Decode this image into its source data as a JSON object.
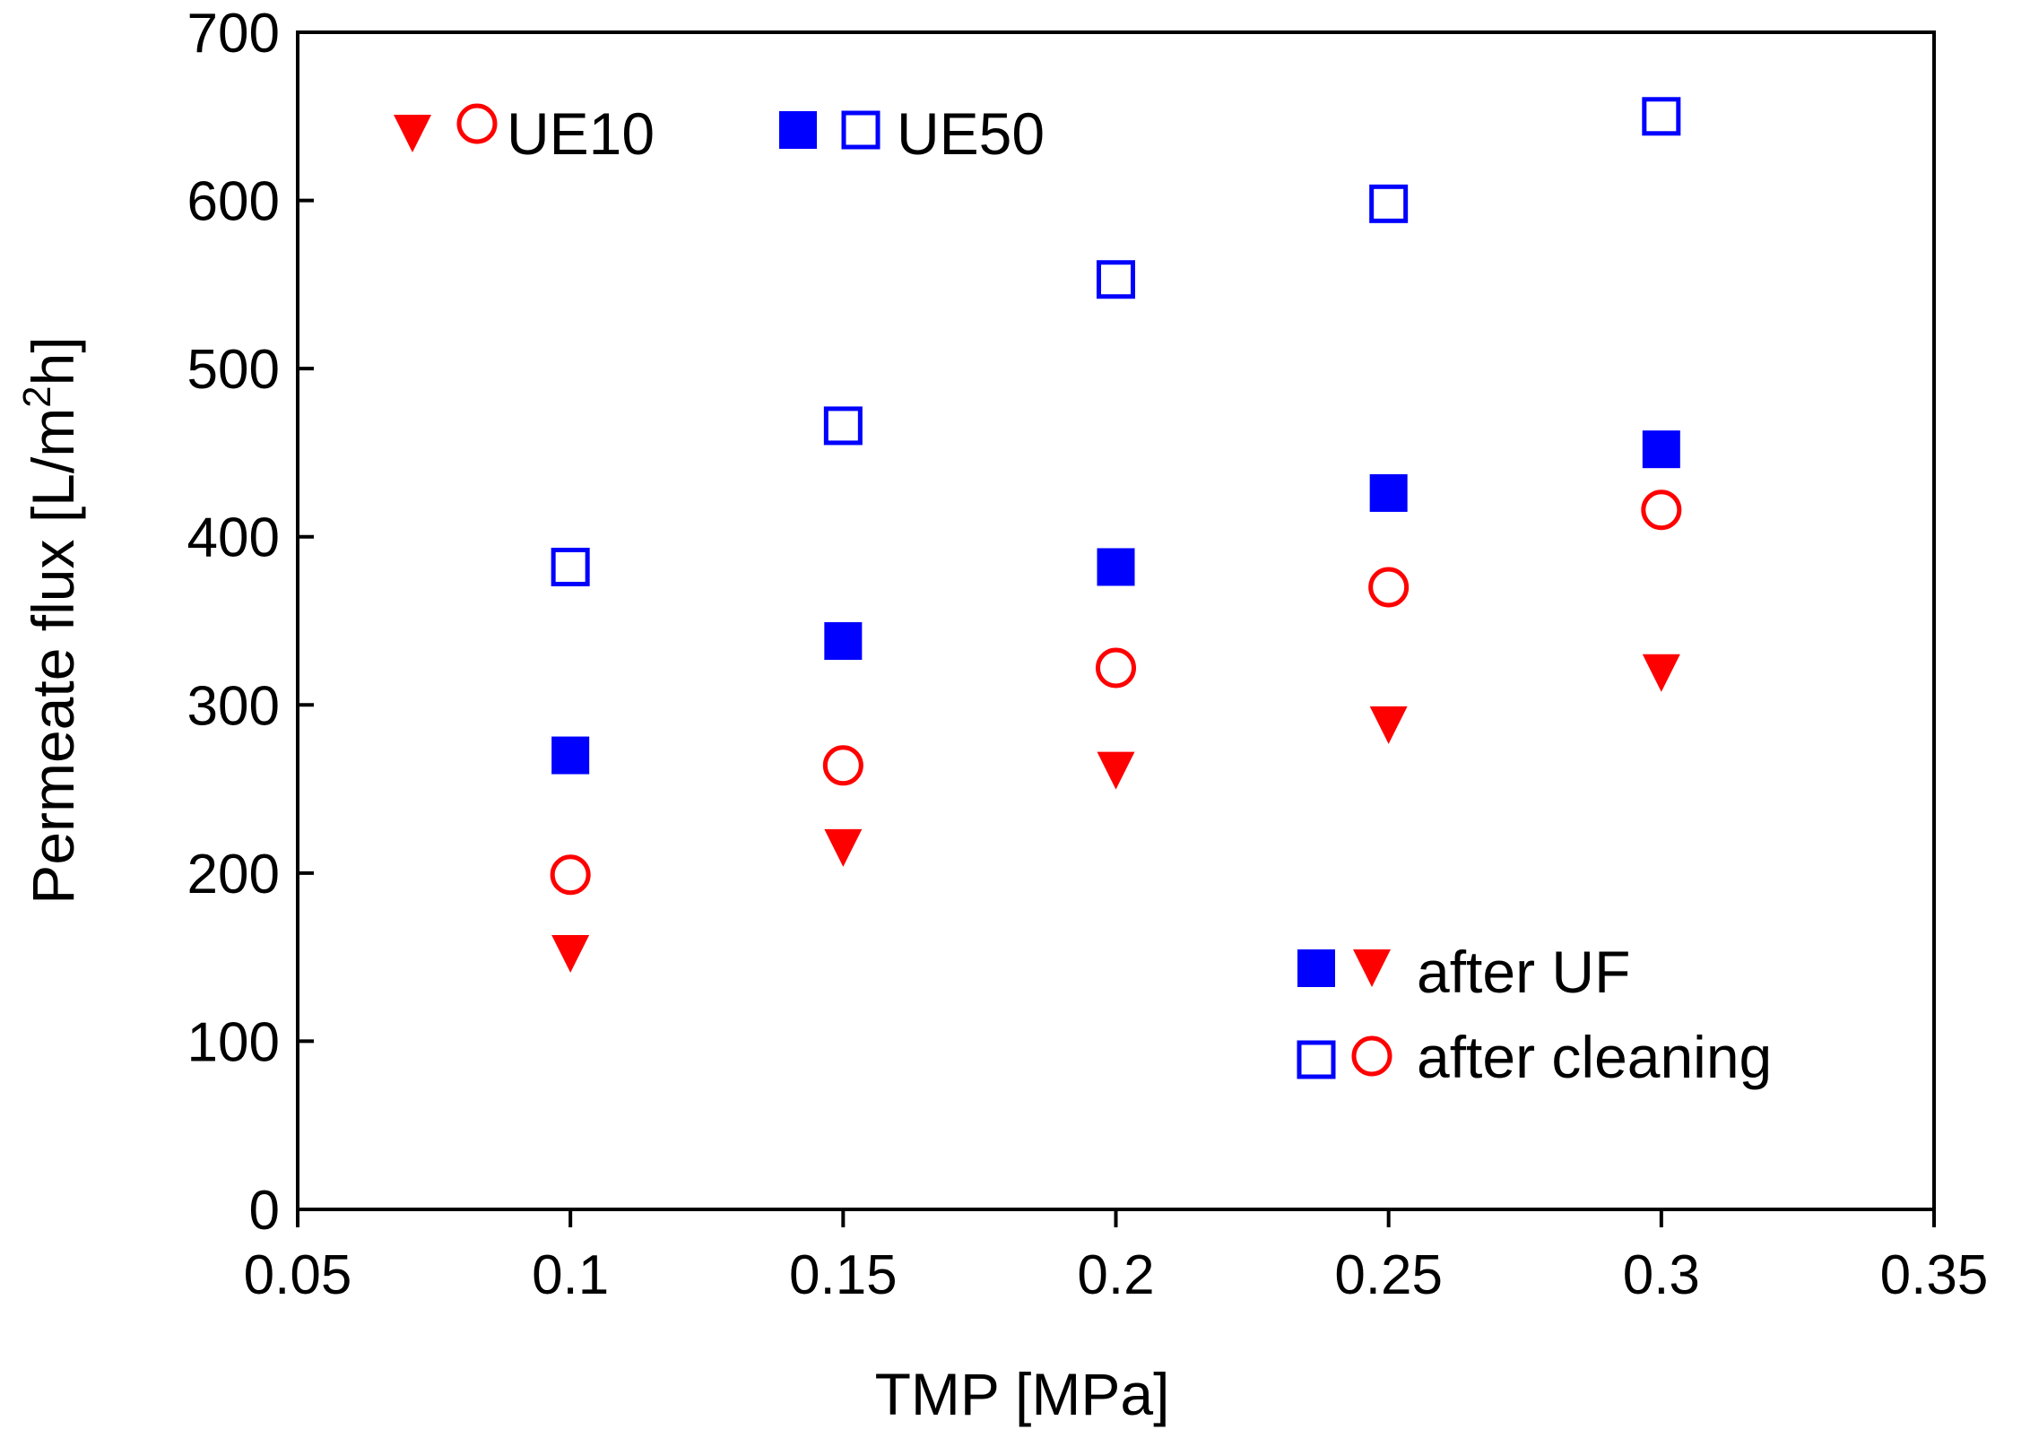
{
  "chart_data": {
    "type": "scatter",
    "title": "",
    "xlabel": "TMP [MPa]",
    "ylabel_prefix": "Permeate flux [L/m",
    "ylabel_sup": "2",
    "ylabel_suffix": "h]",
    "xlim": [
      0.05,
      0.35
    ],
    "ylim": [
      0,
      700
    ],
    "xticks": [
      0.05,
      0.1,
      0.15,
      0.2,
      0.25,
      0.3,
      0.35
    ],
    "xtick_labels": [
      "0.05",
      "0.1",
      "0.15",
      "0.2",
      "0.25",
      "0.3",
      "0.35"
    ],
    "yticks": [
      0,
      100,
      200,
      300,
      400,
      500,
      600,
      700
    ],
    "ytick_labels": [
      "0",
      "100",
      "200",
      "300",
      "400",
      "500",
      "600",
      "700"
    ],
    "grid": false,
    "x": [
      0.1,
      0.15,
      0.2,
      0.25,
      0.3
    ],
    "series": [
      {
        "name": "UE50 after cleaning",
        "membrane": "UE50",
        "condition": "after cleaning",
        "marker": "square-open",
        "color": "#0000ff",
        "values": [
          382,
          466,
          553,
          598,
          650
        ]
      },
      {
        "name": "UE50 after UF",
        "membrane": "UE50",
        "condition": "after UF",
        "marker": "square-filled",
        "color": "#0000ff",
        "values": [
          270,
          338,
          382,
          426,
          452
        ]
      },
      {
        "name": "UE10 after cleaning",
        "membrane": "UE10",
        "condition": "after cleaning",
        "marker": "circle-open",
        "color": "#ff0000",
        "values": [
          199,
          264,
          322,
          370,
          416
        ]
      },
      {
        "name": "UE10 after UF",
        "membrane": "UE10",
        "condition": "after UF",
        "marker": "triangle-down-filled",
        "color": "#ff0000",
        "values": [
          153,
          216,
          262,
          289,
          320
        ]
      }
    ],
    "legend_membranes": {
      "location": "top-left",
      "entries": [
        {
          "label": "UE10",
          "markers": [
            "triangle-down-filled",
            "circle-open"
          ],
          "color": "#ff0000"
        },
        {
          "label": "UE50",
          "markers": [
            "square-filled",
            "square-open"
          ],
          "color": "#0000ff"
        }
      ]
    },
    "legend_conditions": {
      "location": "bottom-right",
      "entries": [
        {
          "label": "after UF",
          "markers": [
            "square-filled",
            "triangle-down-filled"
          ],
          "colors": [
            "#0000ff",
            "#ff0000"
          ]
        },
        {
          "label": "after cleaning",
          "markers": [
            "square-open",
            "circle-open"
          ],
          "colors": [
            "#0000ff",
            "#ff0000"
          ]
        }
      ]
    }
  }
}
